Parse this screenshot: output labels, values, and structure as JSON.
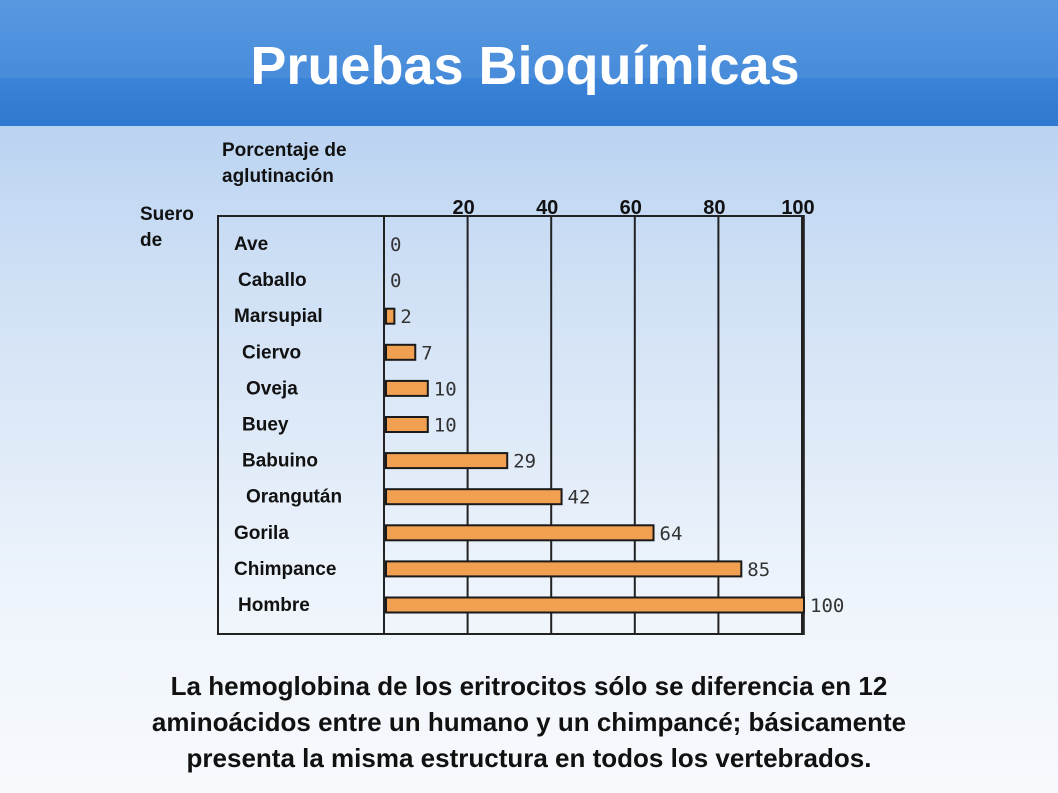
{
  "slide": {
    "title": "Pruebas Bioquímicas",
    "caption_lines": [
      "La hemoglobina de los eritrocitos sólo se diferencia en 12",
      "aminoácidos entre un humano y un chimpancé; básicamente",
      "presenta la misma estructura en todos los vertebrados."
    ]
  },
  "colors": {
    "title_bar": "#3b84d8",
    "bar_fill": "#f0a050",
    "bar_stroke": "#1a1a1a"
  },
  "chart_data": {
    "type": "bar",
    "orientation": "horizontal",
    "title_lines": [
      "Porcentaje de",
      "aglutinación"
    ],
    "ylabel_lines": [
      "Suero",
      "de"
    ],
    "categories": [
      "Ave",
      "Caballo",
      "Marsupial",
      "Ciervo",
      "Oveja",
      "Buey",
      "Babuino",
      "Orangután",
      "Gorila",
      "Chimpance",
      "Hombre"
    ],
    "values": [
      0,
      0,
      2,
      7,
      10,
      10,
      29,
      42,
      64,
      85,
      100
    ],
    "value_labels": [
      "0",
      "0",
      "2",
      "7",
      "10",
      "10",
      "29",
      "42",
      "64",
      "85",
      "100"
    ],
    "x_ticks": [
      20,
      40,
      60,
      80,
      100
    ],
    "xlim": [
      0,
      110
    ],
    "grid": true
  }
}
